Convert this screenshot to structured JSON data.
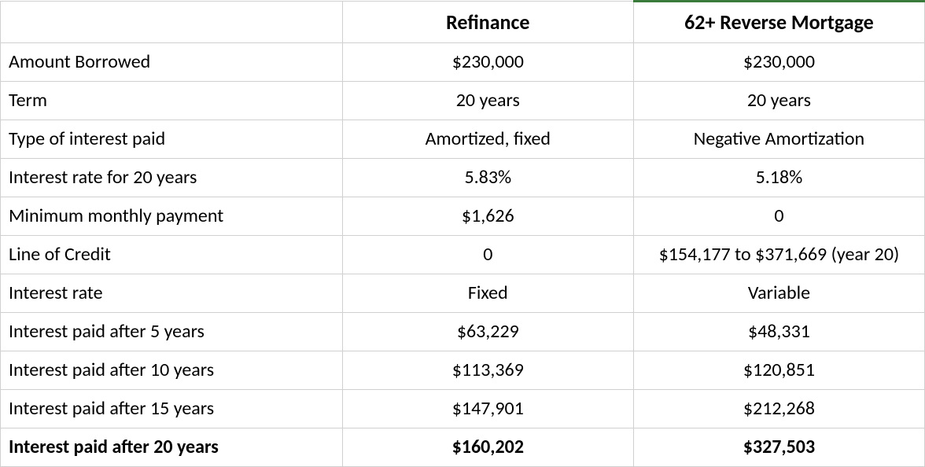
{
  "table": {
    "headers": {
      "label": "",
      "col1": "Refinance",
      "col2": "62+ Reverse Mortgage"
    },
    "rows": [
      {
        "label": "Amount Borrowed",
        "col1": "$230,000",
        "col2": "$230,000",
        "bold": false
      },
      {
        "label": "Term",
        "col1": "20 years",
        "col2": "20 years",
        "bold": false
      },
      {
        "label": "Type of interest paid",
        "col1": "Amortized, fixed",
        "col2": "Negative Amortization",
        "bold": false
      },
      {
        "label": "Interest rate for 20 years",
        "col1": "5.83%",
        "col2": "5.18%",
        "bold": false
      },
      {
        "label": "Minimum monthly payment",
        "col1": "$1,626",
        "col2": "0",
        "bold": false
      },
      {
        "label": "Line of Credit",
        "col1": "0",
        "col2": "$154,177 to $371,669 (year 20)",
        "bold": false
      },
      {
        "label": "Interest rate",
        "col1": "Fixed",
        "col2": "Variable",
        "bold": false
      },
      {
        "label": "Interest paid after 5 years",
        "col1": "$63,229",
        "col2": "$48,331",
        "bold": false
      },
      {
        "label": "Interest paid after 10 years",
        "col1": "$113,369",
        "col2": "$120,851",
        "bold": false
      },
      {
        "label": "Interest paid after 15 years",
        "col1": "$147,901",
        "col2": "$212,268",
        "bold": false
      },
      {
        "label": "Interest paid after 20 years",
        "col1": "$160,202",
        "col2": "$327,503",
        "bold": true
      }
    ],
    "style": {
      "border_color": "#d0d0d0",
      "accent_color": "#3a7a3a",
      "background": "#ffffff",
      "text_color": "#000000",
      "header_fontsize": 26,
      "cell_fontsize": 24,
      "font_family": "Calibri, Arial, sans-serif"
    }
  }
}
